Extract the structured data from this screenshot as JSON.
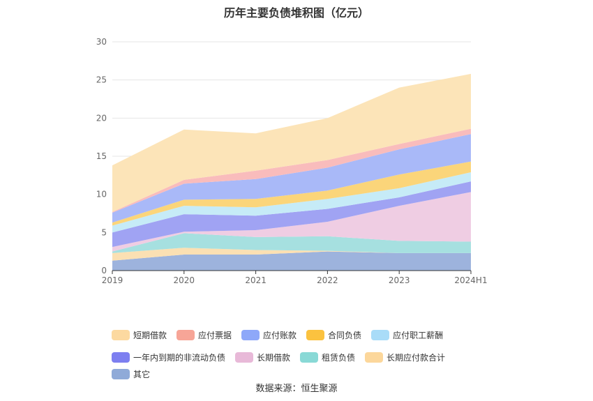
{
  "chart_data": {
    "type": "area",
    "stacked": true,
    "title": "历年主要负债堆积图（亿元）",
    "categories": [
      "2019",
      "2020",
      "2021",
      "2022",
      "2023",
      "2024H1"
    ],
    "ylim": [
      0,
      30
    ],
    "yticks": [
      0,
      5,
      10,
      15,
      20,
      25,
      30
    ],
    "grid": true,
    "legend_position": "bottom",
    "series": [
      {
        "name": "其它",
        "color": "#9db3dd",
        "values": [
          1.3,
          2.1,
          2.1,
          2.5,
          2.3,
          2.3
        ]
      },
      {
        "name": "长期应付款合计",
        "color": "#fbe0b3",
        "values": [
          1.0,
          0.9,
          0.6,
          0.1,
          0.0,
          0.0
        ]
      },
      {
        "name": "租赁负债",
        "color": "#a6e0e0",
        "values": [
          0.2,
          1.9,
          1.7,
          1.9,
          1.6,
          1.5
        ]
      },
      {
        "name": "长期借款",
        "color": "#efcde3",
        "values": [
          0.6,
          0.2,
          0.9,
          1.9,
          4.6,
          6.5
        ]
      },
      {
        "name": "一年内到期的非流动负债",
        "color": "#a0a3f3",
        "values": [
          1.9,
          2.3,
          1.9,
          1.7,
          1.1,
          1.4
        ]
      },
      {
        "name": "应付职工薪酬",
        "color": "#c6ebf7",
        "values": [
          0.9,
          1.1,
          1.1,
          1.3,
          1.2,
          1.2
        ]
      },
      {
        "name": "合同负债",
        "color": "#fbd57a",
        "values": [
          0.4,
          0.8,
          1.1,
          1.1,
          1.8,
          1.4
        ]
      },
      {
        "name": "应付账款",
        "color": "#a9b9f8",
        "values": [
          1.3,
          2.1,
          2.6,
          3.0,
          3.3,
          3.6
        ]
      },
      {
        "name": "应付票据",
        "color": "#f9bcbc",
        "values": [
          0.1,
          0.5,
          1.1,
          1.0,
          0.7,
          0.7
        ]
      },
      {
        "name": "短期借款",
        "color": "#fce4b8",
        "values": [
          6.1,
          6.6,
          4.9,
          5.5,
          7.4,
          7.2
        ]
      }
    ],
    "legend_order": [
      "短期借款",
      "应付票据",
      "应付账款",
      "合同负债",
      "应付职工薪酬",
      "一年内到期的非流动负债",
      "长期借款",
      "租赁负债",
      "长期应付款合计",
      "其它"
    ],
    "legend_swatch_colors": {
      "短期借款": "#fcd9a0",
      "应付票据": "#f7a597",
      "应付账款": "#8ea8f9",
      "合同负债": "#fbc23f",
      "应付职工薪酬": "#a9dcf8",
      "一年内到期的非流动负债": "#7d7ff0",
      "长期借款": "#e8b9d8",
      "租赁负债": "#89d9d6",
      "长期应付款合计": "#fcd79b",
      "其它": "#8faad8"
    }
  },
  "source_text": "数据来源：恒生聚源"
}
